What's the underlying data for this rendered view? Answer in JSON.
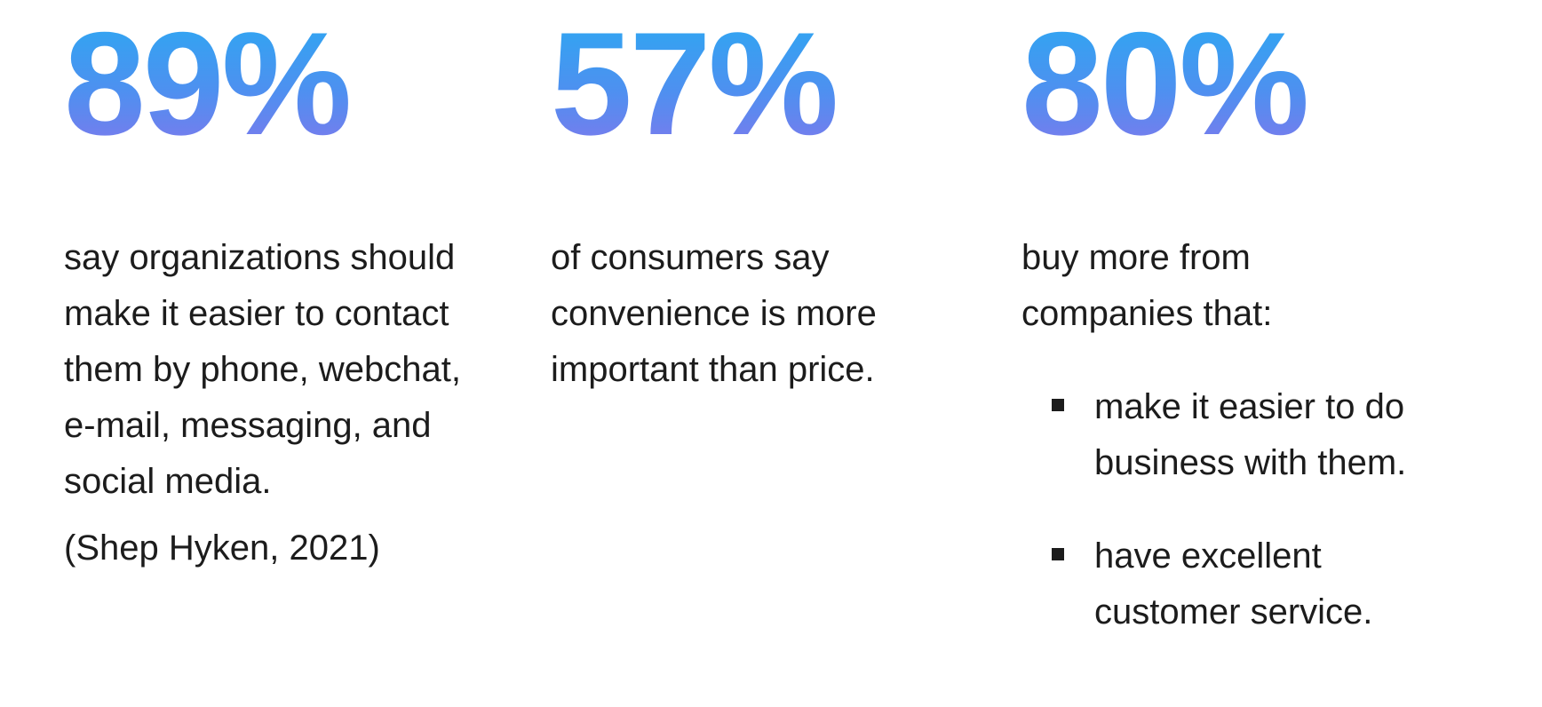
{
  "page": {
    "background_color": "#ffffff",
    "text_color": "#1c1c1c"
  },
  "accent": {
    "number_gradient_top": "#2ba9f2",
    "number_gradient_bottom": "#8177ec"
  },
  "stats": [
    {
      "value": "89%",
      "description": "say organizations should make it easier to contact them by phone, webchat, e-mail, messaging, and social media.",
      "source": "(Shep Hyken, 2021)"
    },
    {
      "value": "57%",
      "description": "of consumers say convenience is more important than price."
    },
    {
      "value": "80%",
      "description": "buy more from companies that:",
      "bullets": [
        "make it easier to do business with them.",
        "have excellent customer service."
      ]
    }
  ]
}
